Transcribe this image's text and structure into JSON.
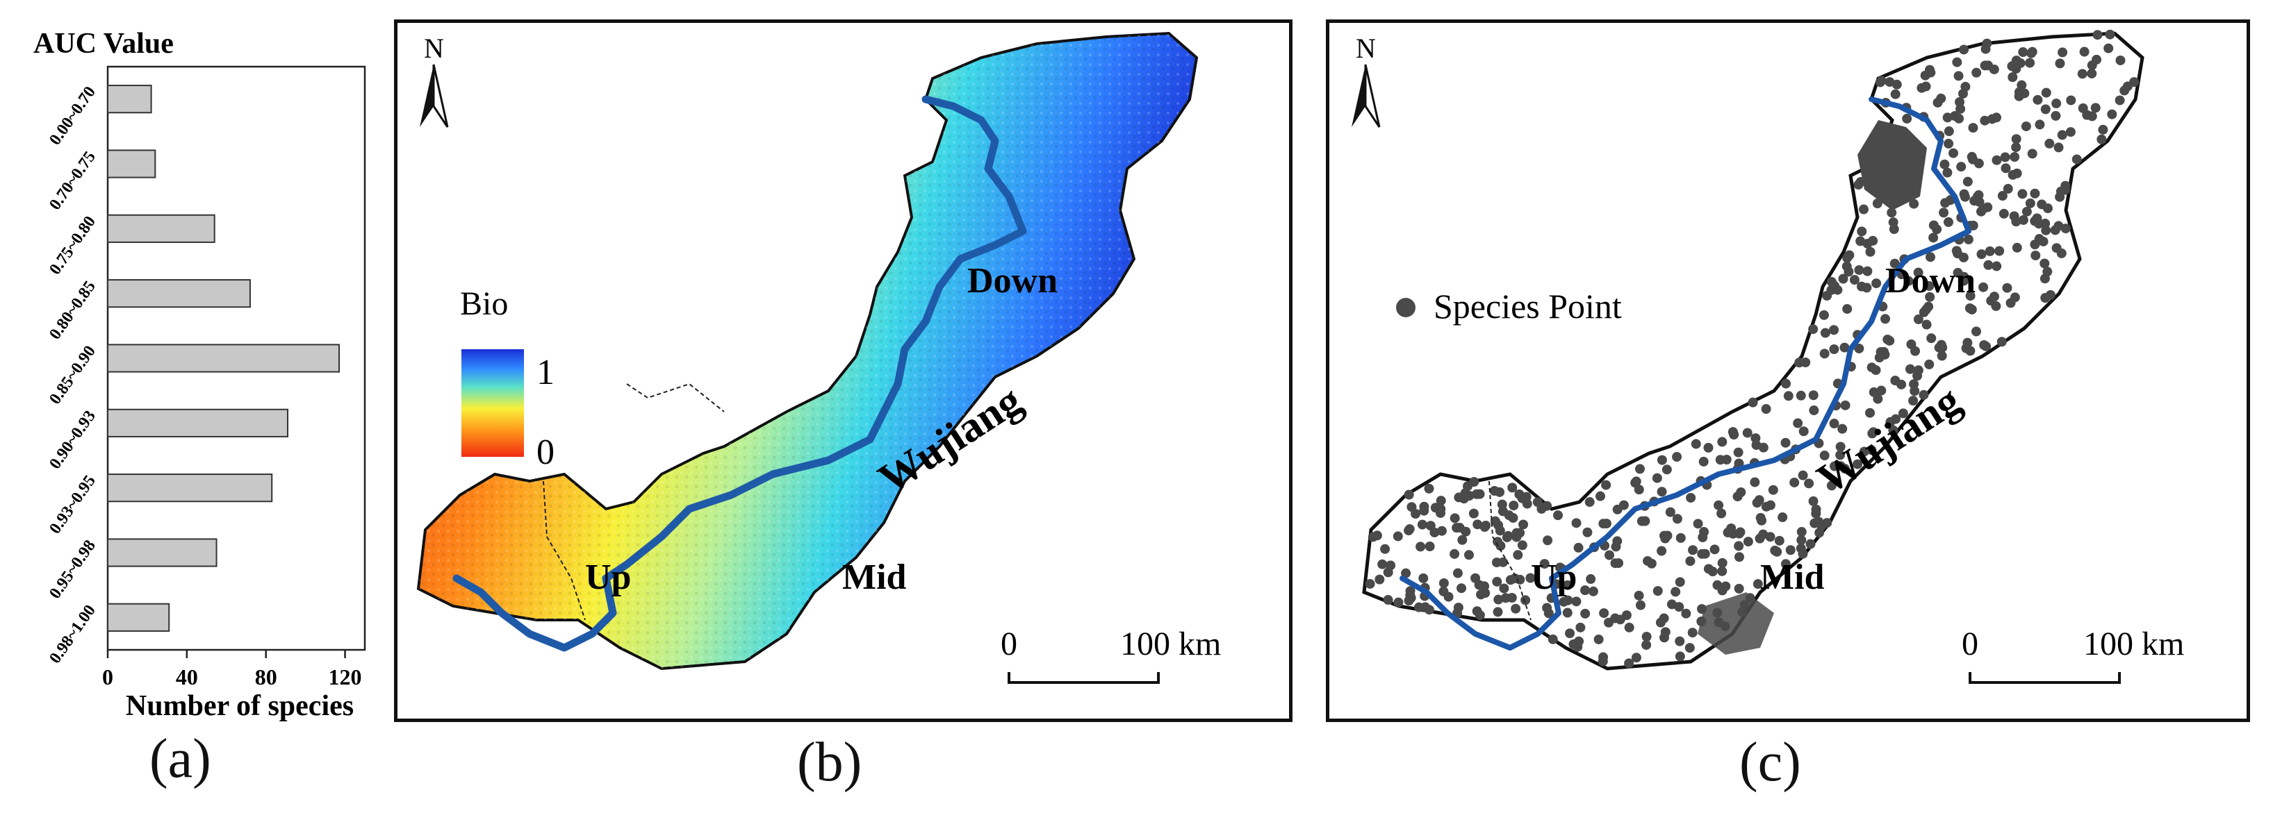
{
  "chart_data": {
    "type": "bar",
    "orientation": "horizontal",
    "title": "AUC Value",
    "xlabel": "Number of species",
    "ylabel": "",
    "categories": [
      "0.00~0.70",
      "0.70~0.75",
      "0.75~0.80",
      "0.80~0.85",
      "0.85~0.90",
      "0.90~0.93",
      "0.93~0.95",
      "0.95~0.98",
      "0.98~1.00"
    ],
    "values": [
      22,
      24,
      54,
      72,
      117,
      91,
      83,
      55,
      31
    ],
    "xlim": [
      0,
      130
    ],
    "xticks": [
      "0",
      "40",
      "80",
      "120"
    ],
    "grid": false,
    "bar_color": "#c8c8c8"
  },
  "panels": {
    "a": {
      "caption": "(a)"
    },
    "b": {
      "caption": "(b)",
      "north": "N",
      "legend_title": "Bio",
      "legend_max": "1",
      "legend_min": "0",
      "regions": [
        "Up",
        "Mid",
        "Down"
      ],
      "river": "Wujiang",
      "scale_start": "0",
      "scale_end": "100 km",
      "colormap": [
        "#1a2fd6",
        "#2f8bff",
        "#28d8e0",
        "#c6f080",
        "#f8f03a",
        "#ff9a1a",
        "#f02a10"
      ]
    },
    "c": {
      "caption": "(c)",
      "north": "N",
      "legend_label": "Species Point",
      "regions": [
        "Up",
        "Mid",
        "Down"
      ],
      "river": "Wujiang",
      "scale_start": "0",
      "scale_end": "100 km",
      "point_color": "#4a4a4a",
      "river_color": "#1c56a8"
    }
  }
}
